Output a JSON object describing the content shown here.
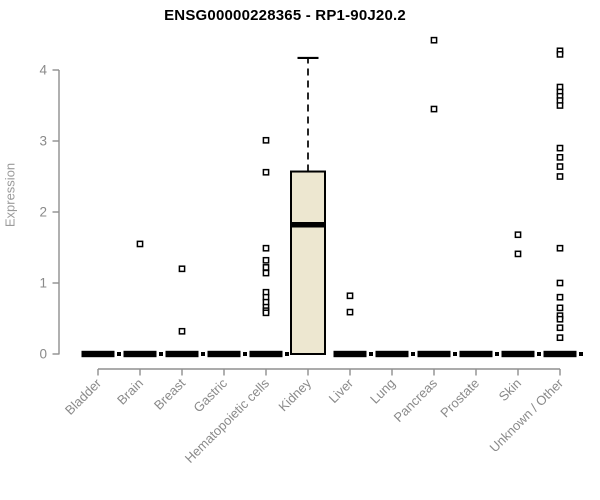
{
  "chart_data": {
    "type": "boxplot",
    "title": "ENSG00000228365 - RP1-90J20.2",
    "ylabel": "Expression",
    "xlabel": "",
    "ylim": [
      0,
      4.45
    ],
    "yticks": [
      0,
      1,
      2,
      3,
      4
    ],
    "grid": false,
    "legend": false,
    "categories": [
      "Bladder",
      "Brain",
      "Breast",
      "Gastric",
      "Hematopoietic cells",
      "Kidney",
      "Liver",
      "Lung",
      "Pancreas",
      "Prostate",
      "Skin",
      "Unknown / Other"
    ],
    "boxes": [
      {
        "q1": 0,
        "median": 0,
        "q3": 0,
        "whisker_low": 0,
        "whisker_high": 0,
        "outliers": []
      },
      {
        "q1": 0,
        "median": 0,
        "q3": 0,
        "whisker_low": 0,
        "whisker_high": 0,
        "outliers": [
          1.55
        ]
      },
      {
        "q1": 0,
        "median": 0,
        "q3": 0,
        "whisker_low": 0,
        "whisker_high": 0,
        "outliers": [
          1.2,
          0.32
        ]
      },
      {
        "q1": 0,
        "median": 0,
        "q3": 0,
        "whisker_low": 0,
        "whisker_high": 0,
        "outliers": []
      },
      {
        "q1": 0,
        "median": 0,
        "q3": 0,
        "whisker_low": 0,
        "whisker_high": 0,
        "outliers": [
          3.01,
          2.56,
          1.49,
          1.32,
          1.22,
          1.14,
          0.87,
          0.8,
          0.73,
          0.66,
          0.61,
          0.58
        ]
      },
      {
        "q1": 0,
        "median": 1.82,
        "q3": 2.57,
        "whisker_low": 0,
        "whisker_high": 4.17,
        "outliers": []
      },
      {
        "q1": 0,
        "median": 0,
        "q3": 0,
        "whisker_low": 0,
        "whisker_high": 0,
        "outliers": [
          0.82,
          0.59
        ]
      },
      {
        "q1": 0,
        "median": 0,
        "q3": 0,
        "whisker_low": 0,
        "whisker_high": 0,
        "outliers": []
      },
      {
        "q1": 0,
        "median": 0,
        "q3": 0,
        "whisker_low": 0,
        "whisker_high": 0,
        "outliers": [
          4.42,
          3.45
        ]
      },
      {
        "q1": 0,
        "median": 0,
        "q3": 0,
        "whisker_low": 0,
        "whisker_high": 0,
        "outliers": []
      },
      {
        "q1": 0,
        "median": 0,
        "q3": 0,
        "whisker_low": 0,
        "whisker_high": 0,
        "outliers": [
          1.68,
          1.41
        ]
      },
      {
        "q1": 0,
        "median": 0,
        "q3": 0,
        "whisker_low": 0,
        "whisker_high": 0,
        "outliers": [
          4.27,
          4.22,
          3.76,
          3.69,
          3.63,
          3.57,
          3.5,
          2.9,
          2.77,
          2.64,
          2.5,
          1.49,
          1.0,
          0.8,
          0.65,
          0.54,
          0.49,
          0.37,
          0.23
        ]
      }
    ],
    "colors": {
      "box_fill": "#ede7d0",
      "box_border": "#000000",
      "median": "#000000",
      "whisker": "#000000",
      "outlier_stroke": "#000000",
      "outlier_fill": "#ffffff",
      "axis": "#8f8f8f",
      "tick_label": "#8a8a8a",
      "y_axis_label": "#9a9a9a",
      "title": "#000000",
      "background": "#ffffff"
    }
  }
}
